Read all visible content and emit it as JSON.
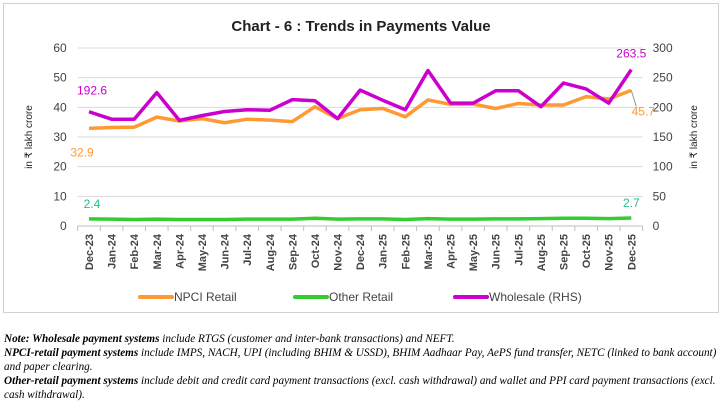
{
  "chart_data": {
    "type": "line",
    "title": "Chart - 6 : Trends in Payments Value",
    "ylabel_left": "in ₹ lakh crore",
    "ylabel_right": "in ₹ lakh crore",
    "ylim_left": [
      0,
      60
    ],
    "ylim_right": [
      0,
      300
    ],
    "yticks_left": [
      "0",
      "10",
      "20",
      "30",
      "40",
      "50",
      "60"
    ],
    "yticks_right": [
      "0",
      "50",
      "100",
      "150",
      "200",
      "250",
      "300"
    ],
    "grid": true,
    "legend_position": "bottom",
    "categories": [
      "Dec-23",
      "Jan-24",
      "Feb-24",
      "Mar-24",
      "Apr-24",
      "May-24",
      "Jun-24",
      "Jul-24",
      "Aug-24",
      "Sep-24",
      "Oct-24",
      "Nov-24",
      "Dec-24",
      "Jan-25",
      "Feb-25",
      "Mar-25",
      "Apr-25",
      "May-25",
      "Jun-25",
      "Jul-25",
      "Aug-25",
      "Sep-25",
      "Oct-25",
      "Nov-25",
      "Dec-25"
    ],
    "series": [
      {
        "name": "NPCI Retail",
        "axis": "left",
        "color": "#FF9933",
        "values": [
          32.9,
          33.2,
          33.3,
          36.7,
          35.4,
          36.2,
          34.8,
          36.0,
          35.7,
          35.2,
          40.2,
          36.2,
          39.2,
          39.6,
          36.8,
          42.5,
          41.0,
          41.1,
          39.6,
          41.3,
          40.8,
          40.8,
          43.6,
          42.8,
          45.7
        ],
        "labels": {
          "first": "32.9",
          "last": "45.7"
        }
      },
      {
        "name": "Other Retail",
        "axis": "left",
        "color": "#33CC33",
        "values": [
          2.4,
          2.3,
          2.2,
          2.3,
          2.2,
          2.2,
          2.2,
          2.3,
          2.3,
          2.3,
          2.6,
          2.3,
          2.4,
          2.4,
          2.2,
          2.5,
          2.3,
          2.3,
          2.4,
          2.4,
          2.5,
          2.6,
          2.6,
          2.5,
          2.7
        ],
        "labels": {
          "first": "2.4",
          "last": "2.7"
        }
      },
      {
        "name": "Wholesale (RHS)",
        "axis": "right",
        "color": "#CC00CC",
        "values": [
          192.6,
          180,
          180,
          224.8,
          178,
          186,
          193,
          196,
          195,
          213,
          211,
          181,
          229,
          212,
          196,
          262,
          207,
          207,
          228,
          228,
          201,
          241,
          231,
          207,
          263.5
        ],
        "labels": {
          "first": "192.6",
          "last": "263.5"
        }
      }
    ]
  },
  "notes": [
    {
      "bold": "Note: Wholesale payment systems",
      "text": " include RTGS (customer and inter-bank transactions) and NEFT."
    },
    {
      "bold": "NPCI-retail payment systems",
      "text": " include IMPS, NACH, UPI (including BHIM & USSD), BHIM Aadhaar Pay, AePS fund transfer, NETC (linked to bank account) and paper clearing."
    },
    {
      "bold": "Other-retail payment systems",
      "text": " include debit and credit card payment transactions (excl. cash withdrawal) and wallet and PPI card payment transactions (excl. cash withdrawal)."
    }
  ]
}
